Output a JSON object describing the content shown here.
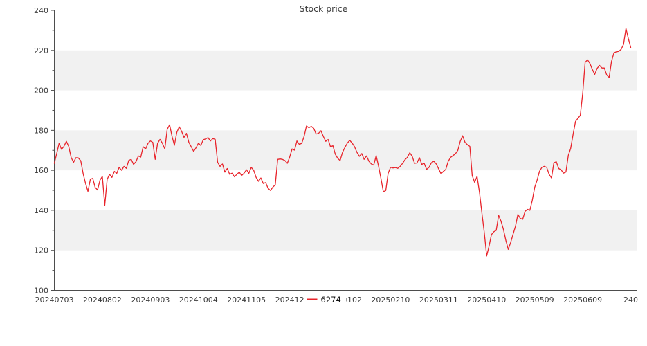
{
  "figure": {
    "title": "Stock price"
  },
  "legend": {
    "series_label": "6274",
    "position": "bottom-center"
  },
  "colors": {
    "line": "#e8232a",
    "band": "#f1f1f1",
    "axis": "#4d4d4d",
    "tick_label": "#3c3c3c",
    "title_text": "#3a3a3a",
    "legend_text": "#111111",
    "background": "#ffffff"
  },
  "chart_data": {
    "type": "line",
    "title": "Stock price",
    "xlabel": "",
    "ylabel": "",
    "ylim": [
      100,
      240
    ],
    "y_major_ticks": [
      100,
      120,
      140,
      160,
      180,
      200,
      220,
      240
    ],
    "y_minor_ticks": [
      110,
      130,
      150,
      170,
      190,
      210,
      230
    ],
    "shaded_bands": [
      [
        120,
        140
      ],
      [
        160,
        180
      ],
      [
        200,
        220
      ]
    ],
    "grid": "alternating horizontal bands, no gridlines",
    "legend_position": "bottom-center",
    "x_axis": "daily trading sessions, tick every 20 sessions",
    "x_tick_every": 20,
    "x_tick_labels": [
      "20240703",
      "20240802",
      "20240903",
      "20241004",
      "20241105",
      "20241205",
      "20250102",
      "20250210",
      "20250311",
      "20250410",
      "20250509",
      "20250609",
      "240"
    ],
    "series": [
      {
        "name": "6274",
        "color": "#e8232a",
        "values": [
          163.5,
          168.5,
          173.5,
          170.5,
          172,
          174.5,
          172,
          166.5,
          164,
          166.3,
          166.2,
          164.8,
          158.3,
          153.5,
          149.5,
          155.5,
          156,
          151.5,
          150.2,
          155,
          157,
          142.5,
          155.5,
          158,
          156.5,
          159.5,
          158.5,
          161.5,
          160,
          162,
          161,
          165,
          165.5,
          163,
          164.3,
          167.2,
          166.6,
          171.8,
          170.7,
          173.5,
          174.7,
          174,
          165.5,
          173.5,
          175.5,
          173.5,
          170.7,
          180.5,
          182.8,
          177,
          172.5,
          179,
          181.8,
          179.5,
          176.5,
          178.5,
          174,
          171.8,
          169.5,
          171.3,
          173.6,
          172.4,
          175.3,
          175.7,
          176.4,
          174.7,
          175.9,
          175.5,
          164,
          162,
          163.2,
          159.1,
          160.9,
          158,
          158.6,
          156.8,
          158,
          159.1,
          157.4,
          158.6,
          160.3,
          158.5,
          161.5,
          160,
          156.5,
          154.5,
          156.2,
          153.4,
          153.9,
          151,
          149.9,
          151.6,
          152.8,
          165.5,
          165.7,
          165.5,
          164.9,
          163.5,
          166.6,
          170.7,
          170.1,
          174.7,
          173,
          173.5,
          177,
          182.2,
          181.3,
          182,
          181,
          178.2,
          178.5,
          179.8,
          177,
          174.5,
          175.4,
          171.8,
          172.3,
          168,
          166,
          164.9,
          169,
          171.5,
          173.6,
          175,
          173.6,
          171.8,
          169,
          167,
          168.4,
          165.5,
          167.2,
          164.5,
          163.2,
          162.6,
          167.4,
          162,
          156,
          149.3,
          149.9,
          158.5,
          161.5,
          161.2,
          161.4,
          161,
          162,
          163.5,
          165.3,
          166.5,
          168.8,
          167,
          163.5,
          163.7,
          166.3,
          163,
          163.5,
          160.5,
          161.5,
          163.8,
          164.6,
          163.2,
          160.8,
          158.3,
          159.5,
          160.5,
          164.5,
          166.5,
          167.4,
          168.3,
          170,
          174.5,
          177.3,
          174,
          172.8,
          172,
          157.4,
          154,
          157,
          149.3,
          138.9,
          129,
          117.2,
          122,
          127.9,
          129.3,
          130,
          137.5,
          134.5,
          130.5,
          125,
          120.5,
          124,
          128,
          132,
          138,
          136,
          135.5,
          139.5,
          140.5,
          140,
          145,
          151.5,
          155,
          159.5,
          161.5,
          162,
          161.5,
          158,
          156.2,
          163.8,
          164.3,
          160.9,
          160.3,
          158.6,
          159.1,
          167.5,
          171,
          178,
          184.5,
          186,
          187.5,
          198.5,
          214,
          215.3,
          213.5,
          210.5,
          208,
          211,
          212.5,
          211.2,
          211.2,
          207.7,
          206.5,
          214.5,
          218.8,
          219.3,
          219.5,
          220.5,
          223,
          231,
          226,
          221.5
        ]
      }
    ]
  }
}
